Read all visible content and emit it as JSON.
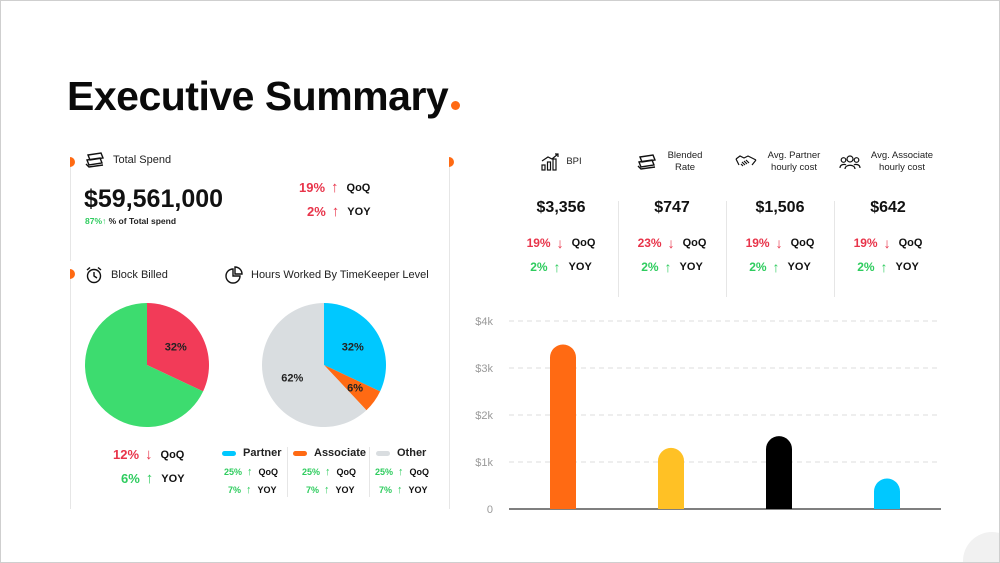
{
  "title": "Executive Summary",
  "total_spend": {
    "label": "Total Spend",
    "value": "$59,561,000",
    "share_pct": "87%",
    "share_label": "% of Total spend",
    "qoq": "19%",
    "qoq_label": "QoQ",
    "yoy": "2%",
    "yoy_label": "YOY"
  },
  "block_billed": {
    "label": "Block Billed",
    "qoq": "12%",
    "qoq_label": "QoQ",
    "yoy": "6%",
    "yoy_label": "YOY"
  },
  "hours_worked": {
    "label": "Hours Worked By TimeKeeper Level",
    "legend": [
      {
        "name": "Partner",
        "qoq": "25%",
        "qoq_label": "QoQ",
        "yoy": "7%",
        "yoy_label": "YOY"
      },
      {
        "name": "Associate",
        "qoq": "25%",
        "qoq_label": "QoQ",
        "yoy": "7%",
        "yoy_label": "YOY"
      },
      {
        "name": "Other",
        "qoq": "25%",
        "qoq_label": "QoQ",
        "yoy": "7%",
        "yoy_label": "YOY"
      }
    ]
  },
  "kpis": [
    {
      "label": "BPI",
      "icon": "chart-trend-icon",
      "value": "$3,356",
      "qoq": "19%",
      "qoq_label": "QoQ",
      "yoy": "2%",
      "yoy_label": "YOY"
    },
    {
      "label": "Blended Rate",
      "icon": "money-stack-icon",
      "value": "$747",
      "qoq": "23%",
      "qoq_label": "QoQ",
      "yoy": "2%",
      "yoy_label": "YOY"
    },
    {
      "label": "Avg. Partner hourly cost",
      "icon": "handshake-icon",
      "value": "$1,506",
      "qoq": "19%",
      "qoq_label": "QoQ",
      "yoy": "2%",
      "yoy_label": "YOY"
    },
    {
      "label": "Avg. Associate hourly cost",
      "icon": "group-icon",
      "value": "$642",
      "qoq": "19%",
      "qoq_label": "QoQ",
      "yoy": "2%",
      "yoy_label": "YOY"
    }
  ],
  "colors": {
    "accent": "#ff6a13",
    "up_red": "#e8344a",
    "up_green": "#2ecc5e",
    "pie_green": "#3ddc6f",
    "pie_red": "#f23b58",
    "partner": "#00c8ff",
    "associate": "#ff6a13",
    "other": "#d9dde0",
    "bar_yellow": "#ffc125",
    "bar_black": "#000000"
  },
  "chart_data": [
    {
      "type": "pie",
      "slices": [
        {
          "name": "",
          "value": 32,
          "label": "32%",
          "color": "#f23b58"
        },
        {
          "name": "",
          "value": 68,
          "label": "",
          "color": "#3ddc6f"
        }
      ]
    },
    {
      "type": "pie",
      "slices": [
        {
          "name": "Partner",
          "value": 32,
          "label": "32%",
          "color": "#00c8ff"
        },
        {
          "name": "Associate",
          "value": 6,
          "label": "6%",
          "color": "#ff6a13"
        },
        {
          "name": "Other",
          "value": 62,
          "label": "62%",
          "color": "#d9dde0"
        }
      ]
    },
    {
      "type": "bar",
      "categories": [
        "",
        "",
        "",
        ""
      ],
      "values": [
        3500,
        1300,
        1550,
        650
      ],
      "colors": [
        "#ff6a13",
        "#ffc125",
        "#000000",
        "#00c8ff"
      ],
      "ylim": [
        0,
        4000
      ],
      "yticks": [
        0,
        1000,
        2000,
        3000,
        4000
      ],
      "ytick_labels": [
        "0",
        "$1k",
        "$2k",
        "$3k",
        "$4k"
      ],
      "grid": true
    }
  ]
}
